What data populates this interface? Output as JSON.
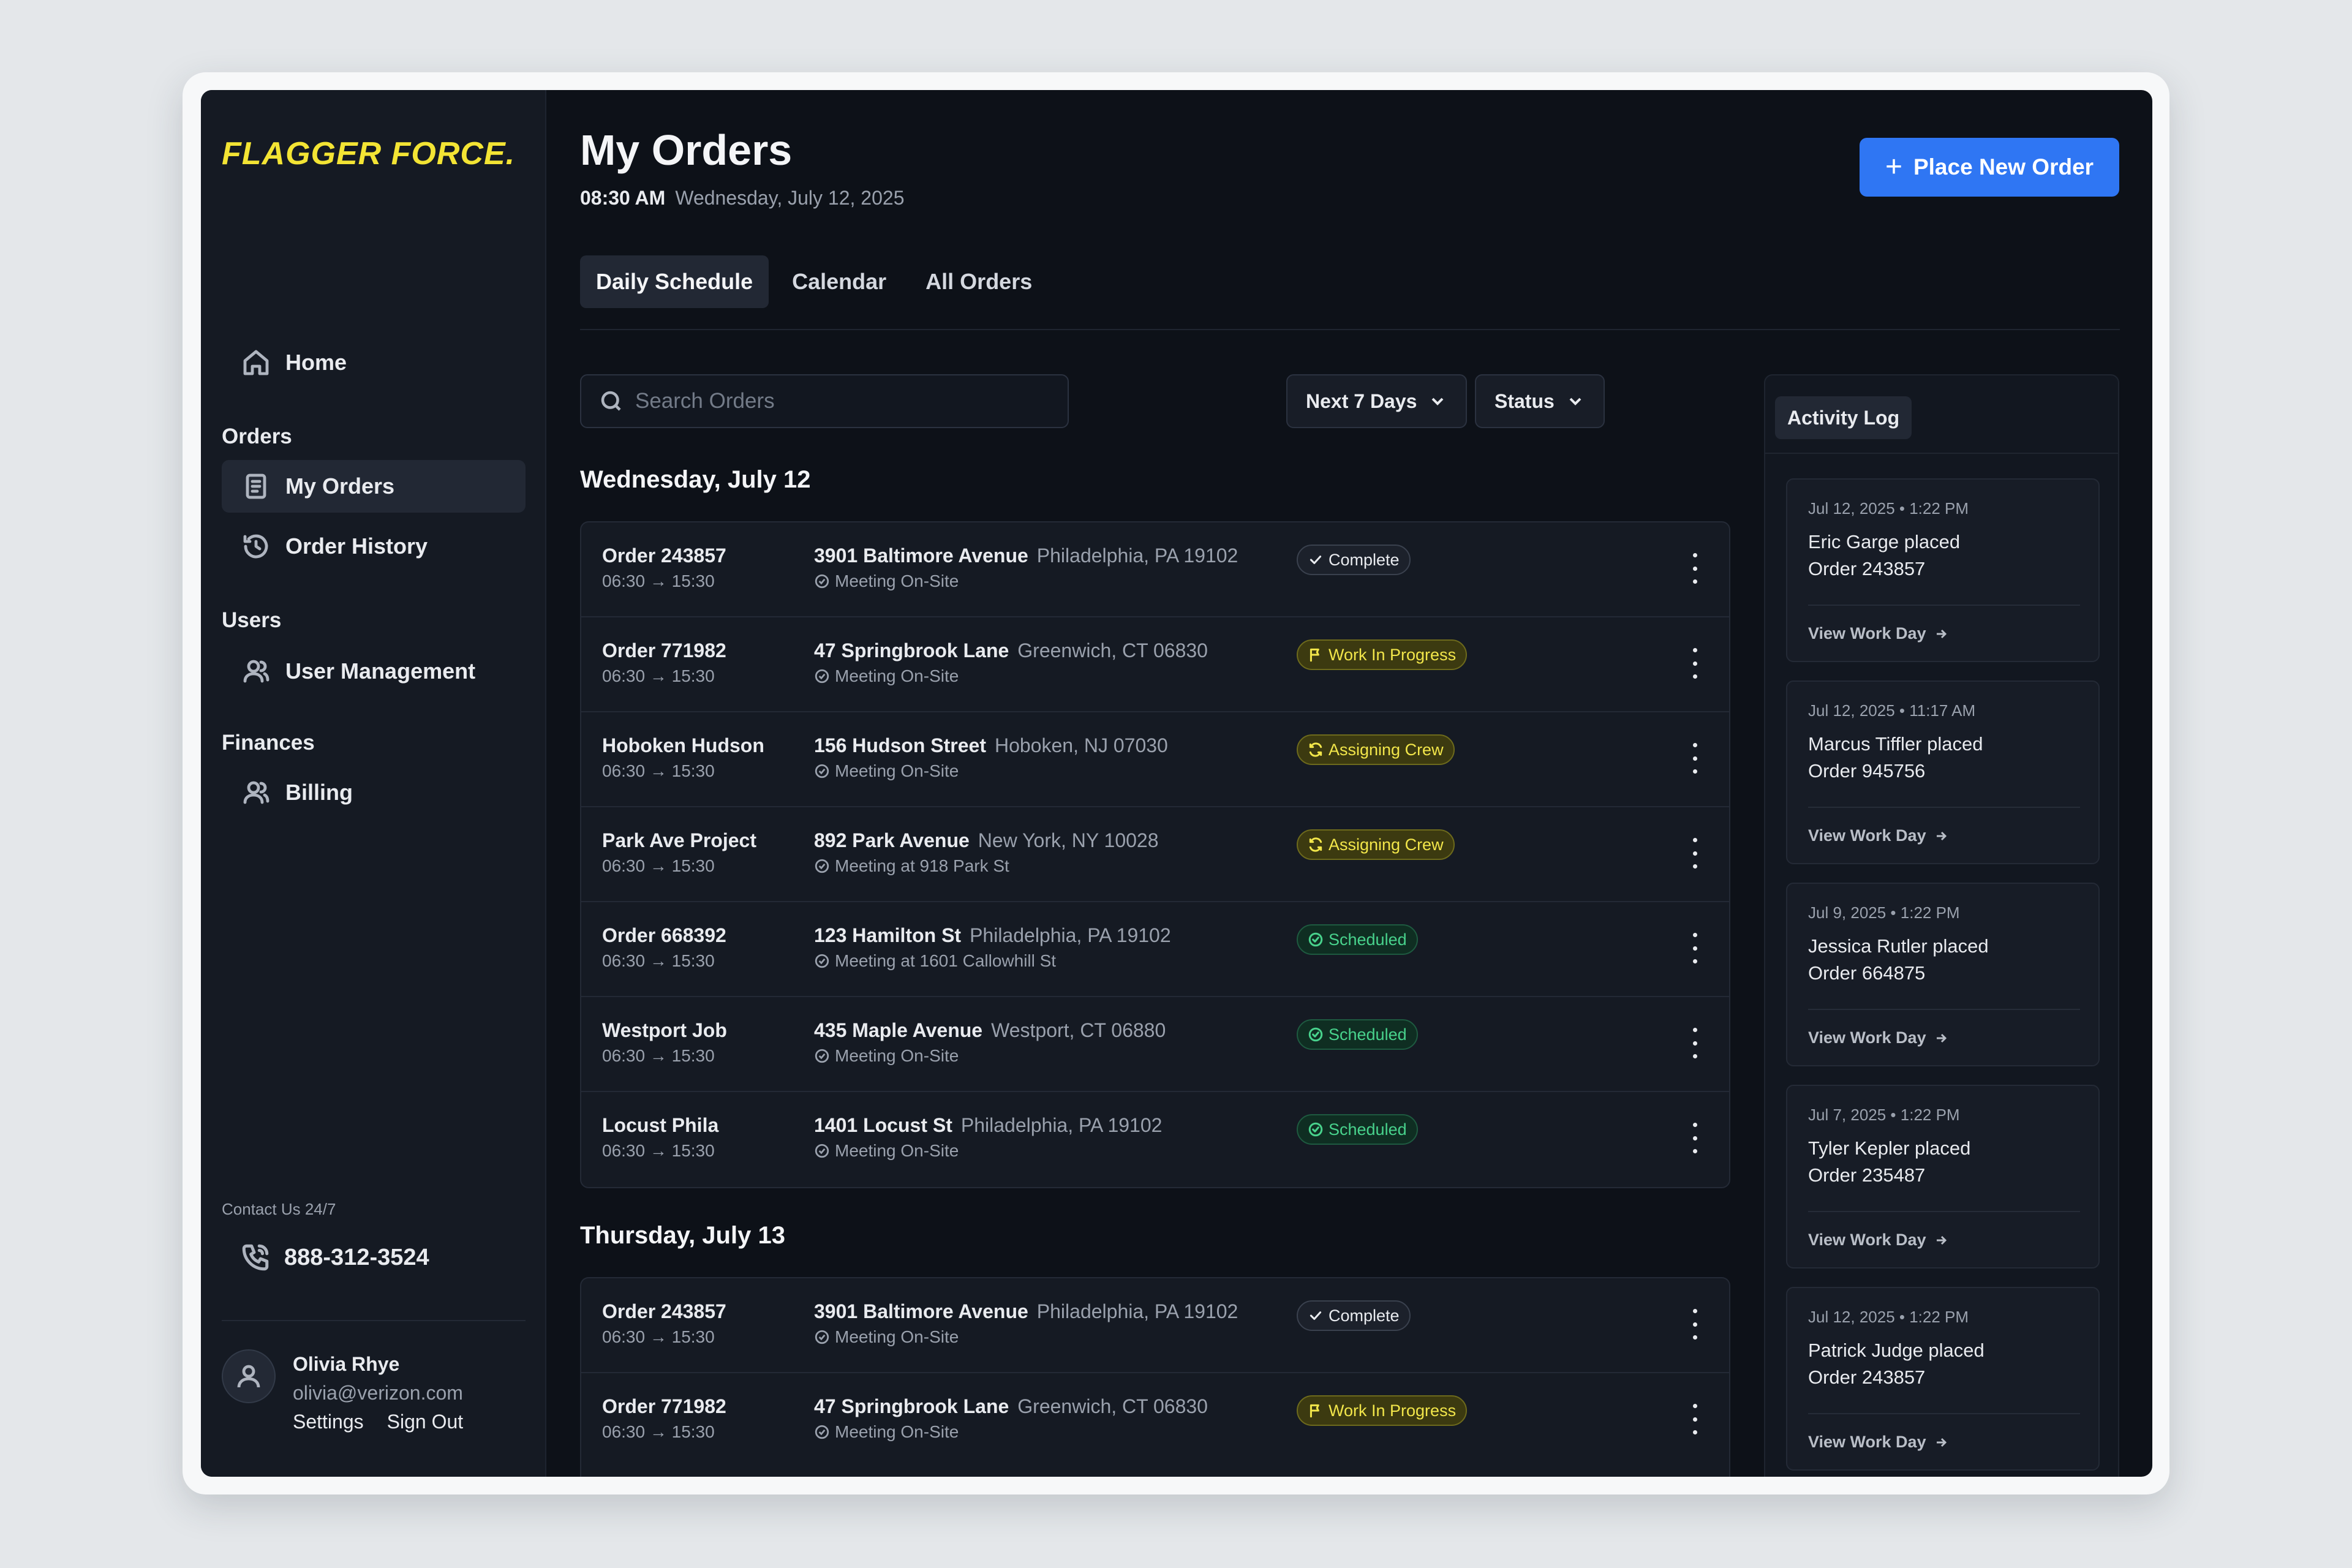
{
  "brand": {
    "logo_text": "FLAGGER FORCE.",
    "logo_color": "#f3e434"
  },
  "sidebar": {
    "home": "Home",
    "sections": {
      "orders": "Orders",
      "users": "Users",
      "finances": "Finances"
    },
    "items": {
      "my_orders": "My Orders",
      "order_history": "Order History",
      "user_management": "User Management",
      "billing": "Billing"
    },
    "contact_label": "Contact Us 24/7",
    "phone": "888-312-3524",
    "user": {
      "name": "Olivia Rhye",
      "email": "olivia@verizon.com",
      "settings": "Settings",
      "sign_out": "Sign Out"
    }
  },
  "header": {
    "title": "My Orders",
    "time": "08:30 AM",
    "date": "Wednesday, July 12, 2025",
    "new_order_label": "Place New Order",
    "accent_color": "#2f76f3"
  },
  "tabs": [
    "Daily Schedule",
    "Calendar",
    "All Orders"
  ],
  "filters": {
    "search_placeholder": "Search Orders",
    "range": "Next 7 Days",
    "status": "Status"
  },
  "days": [
    {
      "title": "Wednesday, July 12",
      "orders": [
        {
          "name": "Order 243857",
          "time": "06:30 → 15:30",
          "street": "3901 Baltimore Avenue",
          "city": "Philadelphia, PA 19102",
          "meeting": "Meeting On-Site",
          "status": "Complete",
          "status_type": "complete"
        },
        {
          "name": "Order 771982",
          "time": "06:30 → 15:30",
          "street": "47 Springbrook Lane",
          "city": "Greenwich, CT 06830",
          "meeting": "Meeting On-Site",
          "status": "Work In Progress",
          "status_type": "wip"
        },
        {
          "name": "Hoboken Hudson",
          "time": "06:30 → 15:30",
          "street": "156 Hudson Street",
          "city": "Hoboken, NJ 07030",
          "meeting": "Meeting On-Site",
          "status": "Assigning Crew",
          "status_type": "assign"
        },
        {
          "name": "Park Ave Project",
          "time": "06:30 → 15:30",
          "street": "892 Park Avenue",
          "city": "New York, NY 10028",
          "meeting": "Meeting at 918 Park St",
          "status": "Assigning Crew",
          "status_type": "assign"
        },
        {
          "name": "Order 668392",
          "time": "06:30 → 15:30",
          "street": "123 Hamilton St",
          "city": "Philadelphia, PA 19102",
          "meeting": "Meeting at 1601 Callowhill St",
          "status": "Scheduled",
          "status_type": "sched"
        },
        {
          "name": "Westport Job",
          "time": "06:30 → 15:30",
          "street": "435 Maple Avenue",
          "city": "Westport, CT 06880",
          "meeting": "Meeting On-Site",
          "status": "Scheduled",
          "status_type": "sched"
        },
        {
          "name": "Locust Phila",
          "time": "06:30 → 15:30",
          "street": "1401 Locust St",
          "city": "Philadelphia, PA 19102",
          "meeting": "Meeting On-Site",
          "status": "Scheduled",
          "status_type": "sched"
        }
      ]
    },
    {
      "title": "Thursday, July 13",
      "orders": [
        {
          "name": "Order 243857",
          "time": "06:30 → 15:30",
          "street": "3901 Baltimore Avenue",
          "city": "Philadelphia, PA 19102",
          "meeting": "Meeting On-Site",
          "status": "Complete",
          "status_type": "complete"
        },
        {
          "name": "Order 771982",
          "time": "06:30 → 15:30",
          "street": "47 Springbrook Lane",
          "city": "Greenwich, CT 06830",
          "meeting": "Meeting On-Site",
          "status": "Work In Progress",
          "status_type": "wip"
        }
      ]
    }
  ],
  "activity": {
    "title": "Activity Log",
    "link_label": "View Work Day",
    "entries": [
      {
        "date": "Jul 12, 2025 • 1:22 PM",
        "actor": "Eric Garge placed",
        "order": "Order 243857"
      },
      {
        "date": "Jul 12, 2025 • 11:17 AM",
        "actor": "Marcus Tiffler placed",
        "order": "Order 945756"
      },
      {
        "date": "Jul 9, 2025 • 1:22 PM",
        "actor": "Jessica Rutler placed",
        "order": "Order 664875"
      },
      {
        "date": "Jul 7, 2025 • 1:22 PM",
        "actor": "Tyler Kepler placed",
        "order": "Order 235487"
      },
      {
        "date": "Jul 12, 2025 • 1:22 PM",
        "actor": "Patrick Judge placed",
        "order": "Order 243857"
      }
    ]
  }
}
